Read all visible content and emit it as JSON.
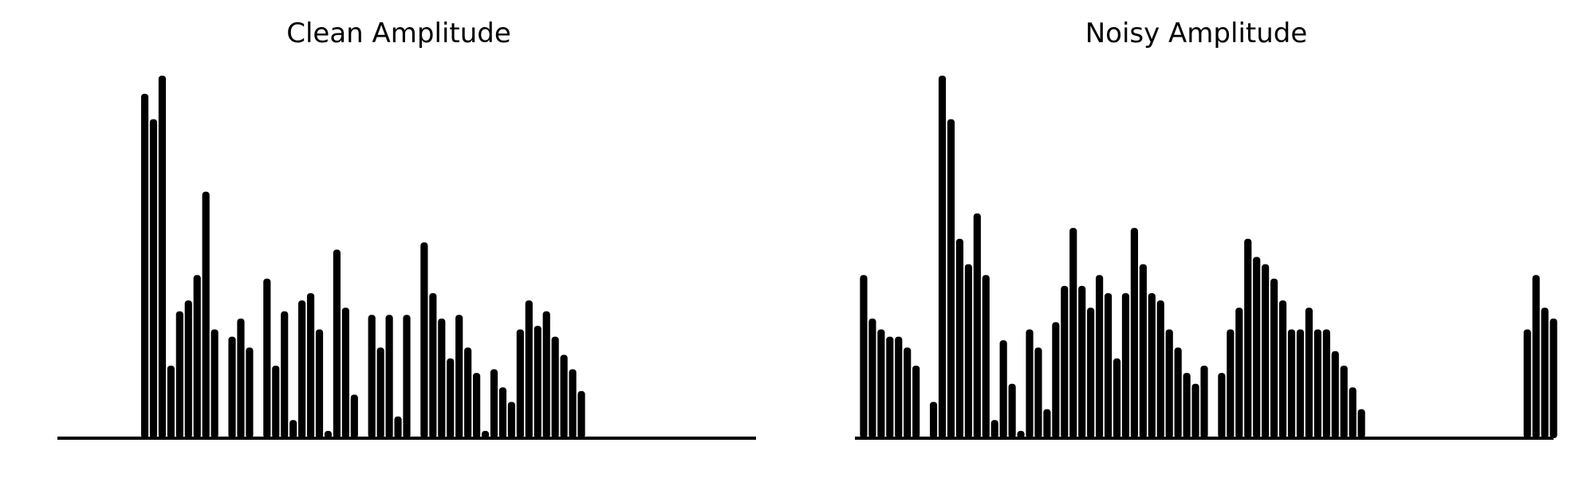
{
  "chart_data": [
    {
      "type": "area",
      "title": "Clean Amplitude",
      "xlabel": "",
      "ylabel": "",
      "axes_visible": false,
      "grid": false,
      "ylim": [
        0,
        1
      ],
      "x": [
        0,
        0.1,
        0.2,
        0.3,
        0.4,
        0.5,
        0.6,
        0.7,
        0.8,
        0.9,
        1.0,
        1.1,
        1.2,
        1.3,
        1.4,
        1.5,
        1.6,
        1.7,
        1.8,
        1.9,
        2.0,
        2.1,
        2.2,
        2.3,
        2.4,
        2.5,
        2.6,
        2.7,
        2.8,
        2.9,
        3.0,
        3.1,
        3.2,
        3.3,
        3.4,
        3.5,
        3.6,
        3.7,
        3.8,
        3.9,
        4.0,
        4.1,
        4.2,
        4.3,
        4.4,
        4.5,
        4.6,
        4.7,
        4.8,
        4.9,
        5.0,
        5.1,
        5.2,
        5.3,
        5.4,
        5.5,
        5.6,
        5.7,
        5.8,
        5.9,
        6.0,
        6.1,
        6.2,
        6.3,
        6.4,
        6.5,
        6.6,
        6.7,
        6.8,
        6.9,
        7.0,
        7.1,
        7.2,
        7.3,
        7.4,
        7.5,
        7.6,
        7.7,
        7.8,
        7.9,
        8.0
      ],
      "values": [
        0,
        0,
        0,
        0,
        0,
        0,
        0,
        0,
        0,
        0,
        0.95,
        0.88,
        1.0,
        0.2,
        0.35,
        0.38,
        0.45,
        0.68,
        0.3,
        0,
        0.28,
        0.33,
        0.25,
        0,
        0.44,
        0.2,
        0.35,
        0.05,
        0.38,
        0.4,
        0.3,
        0.02,
        0.52,
        0.36,
        0.12,
        0,
        0.34,
        0.25,
        0.34,
        0.06,
        0.34,
        0,
        0.54,
        0.4,
        0.33,
        0.22,
        0.34,
        0.25,
        0.18,
        0.02,
        0.19,
        0.14,
        0.1,
        0.3,
        0.38,
        0.31,
        0.35,
        0.28,
        0.23,
        0.19,
        0.13,
        0,
        0,
        0,
        0,
        0,
        0,
        0,
        0,
        0,
        0,
        0,
        0,
        0,
        0,
        0,
        0,
        0,
        0,
        0,
        0
      ]
    },
    {
      "type": "area",
      "title": "Noisy Amplitude",
      "xlabel": "",
      "ylabel": "",
      "axes_visible": false,
      "grid": false,
      "ylim": [
        0,
        1
      ],
      "x": [
        0,
        0.1,
        0.2,
        0.3,
        0.4,
        0.5,
        0.6,
        0.7,
        0.8,
        0.9,
        1.0,
        1.1,
        1.2,
        1.3,
        1.4,
        1.5,
        1.6,
        1.7,
        1.8,
        1.9,
        2.0,
        2.1,
        2.2,
        2.3,
        2.4,
        2.5,
        2.6,
        2.7,
        2.8,
        2.9,
        3.0,
        3.1,
        3.2,
        3.3,
        3.4,
        3.5,
        3.6,
        3.7,
        3.8,
        3.9,
        4.0,
        4.1,
        4.2,
        4.3,
        4.4,
        4.5,
        4.6,
        4.7,
        4.8,
        4.9,
        5.0,
        5.1,
        5.2,
        5.3,
        5.4,
        5.5,
        5.6,
        5.7,
        5.8,
        5.9,
        6.0,
        6.1,
        6.2,
        6.3,
        6.4,
        6.5,
        6.6,
        6.7,
        6.8,
        6.9,
        7.0,
        7.1,
        7.2,
        7.3,
        7.4,
        7.5,
        7.6,
        7.7,
        7.8,
        7.9,
        8.0
      ],
      "values": [
        0,
        0.45,
        0.33,
        0.3,
        0.28,
        0.28,
        0.25,
        0.2,
        0,
        0.1,
        1.0,
        0.88,
        0.55,
        0.48,
        0.62,
        0.45,
        0.05,
        0.27,
        0.15,
        0.02,
        0.3,
        0.25,
        0.08,
        0.32,
        0.42,
        0.58,
        0.42,
        0.36,
        0.45,
        0.4,
        0.22,
        0.4,
        0.58,
        0.48,
        0.4,
        0.38,
        0.3,
        0.25,
        0.18,
        0.15,
        0.2,
        0,
        0.18,
        0.3,
        0.36,
        0.55,
        0.5,
        0.48,
        0.44,
        0.38,
        0.3,
        0.3,
        0.36,
        0.3,
        0.3,
        0.24,
        0.2,
        0.14,
        0.08,
        0,
        0,
        0,
        0,
        0,
        0,
        0,
        0,
        0,
        0,
        0,
        0,
        0,
        0,
        0,
        0,
        0,
        0,
        0.3,
        0.45,
        0.36,
        0.33
      ]
    }
  ]
}
